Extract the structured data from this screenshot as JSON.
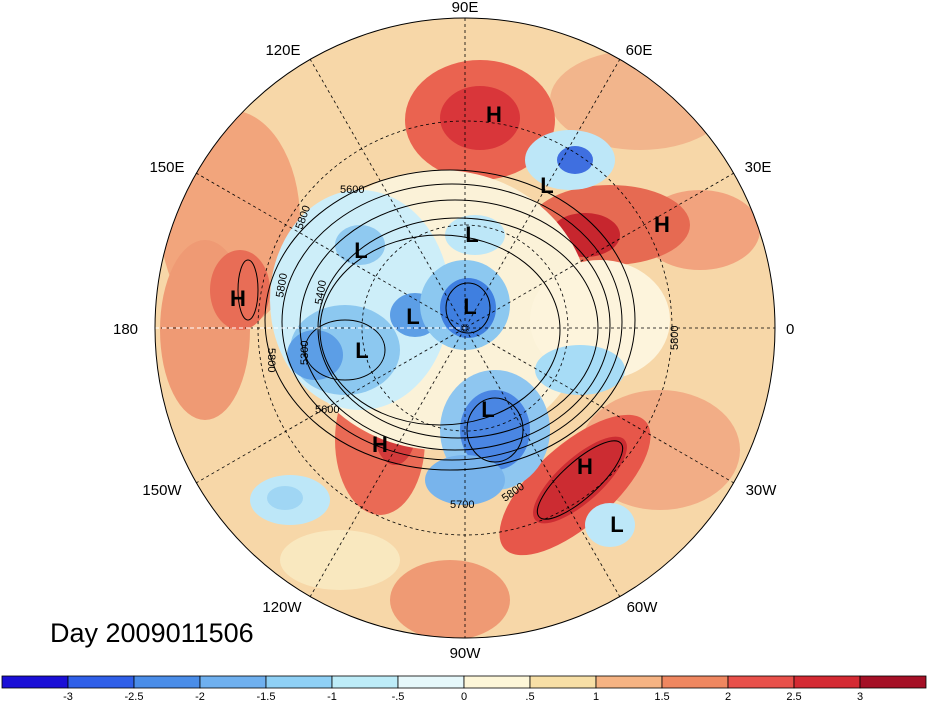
{
  "title": "Day 2009011506",
  "map": {
    "projection": "north-polar-stereographic",
    "longitude_labels": {
      "top": "90E",
      "bottom": "90W",
      "left": "180",
      "right": "0",
      "upper_left_1": "120E",
      "upper_left_2": "150E",
      "upper_right_1": "60E",
      "upper_right_2": "30E",
      "lower_left_1": "150W",
      "lower_left_2": "120W",
      "lower_right_1": "30W",
      "lower_right_2": "60W"
    },
    "contour_labels": [
      "5600",
      "5800",
      "5800",
      "5400",
      "5300",
      "5800",
      "5600",
      "5800",
      "5700",
      "5800"
    ],
    "systems": [
      {
        "type": "H",
        "label": "H"
      },
      {
        "type": "L",
        "label": "L"
      },
      {
        "type": "H",
        "label": "H"
      },
      {
        "type": "L",
        "label": "L"
      },
      {
        "type": "L",
        "label": "L"
      },
      {
        "type": "H",
        "label": "H"
      },
      {
        "type": "L",
        "label": "L"
      },
      {
        "type": "L",
        "label": "L"
      },
      {
        "type": "L",
        "label": "L"
      },
      {
        "type": "L",
        "label": "L"
      },
      {
        "type": "H",
        "label": "H"
      },
      {
        "type": "H",
        "label": "H"
      },
      {
        "type": "L",
        "label": "L"
      }
    ]
  },
  "colorbar": {
    "labels": [
      "-3",
      "-2.5",
      "-2",
      "-1.5",
      "-1",
      "-.5",
      "0",
      ".5",
      "1",
      "1.5",
      "2",
      "2.5",
      "3"
    ],
    "colors": [
      "#1a0fd6",
      "#2f5fe8",
      "#4a8de8",
      "#6fb0ef",
      "#8fd0f5",
      "#bdecf8",
      "#e6f8fb",
      "#fdf6d8",
      "#f7dfa6",
      "#f5b383",
      "#ef8760",
      "#e8504a",
      "#d42a33",
      "#a51026"
    ]
  }
}
